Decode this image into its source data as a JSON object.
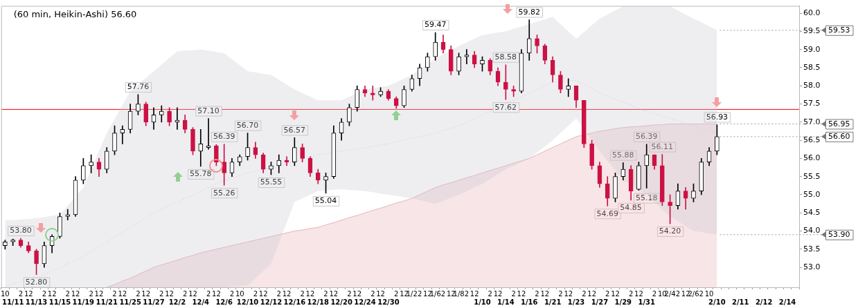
{
  "chart_data": {
    "type": "candlestick",
    "title": "(60 min, Heikin-Ashi) 56.60",
    "categories": [
      "10",
      "11/11",
      "2",
      "12",
      "11/13",
      "2",
      "12",
      "11/15",
      "2",
      "12",
      "11/19",
      "2",
      "12",
      "11/21",
      "2",
      "12",
      "11/25",
      "2",
      "12",
      "11/27",
      "2",
      "12",
      "12/2",
      "2",
      "12",
      "12/4",
      "2",
      "12",
      "12/6",
      "2",
      "10",
      "12/10",
      "2",
      "12",
      "12/12",
      "2",
      "12",
      "12/16",
      "2",
      "12",
      "12/18",
      "2",
      "12",
      "12/20",
      "2",
      "12",
      "12/24",
      "2",
      "12",
      "12/30",
      "2",
      "12",
      "1/2",
      "2",
      "12",
      "1/6",
      "2",
      "12",
      "1/8",
      "2",
      "12",
      "1/10",
      "2",
      "12",
      "1/14",
      "2",
      "12",
      "1/16",
      "2",
      "12",
      "1/21",
      "2",
      "12",
      "1/23",
      "2",
      "12",
      "1/27",
      "2",
      "12",
      "1/29",
      "2",
      "12",
      "1/31",
      "2",
      "10",
      "2/4",
      "2",
      "12",
      "2/6",
      "2",
      "10",
      "2/10",
      null,
      null,
      "2/11",
      null,
      null,
      "2/12",
      null,
      null,
      "2/14",
      null
    ],
    "ohlc": [
      [
        53.6,
        53.75,
        53.5,
        53.7
      ],
      [
        53.7,
        53.78,
        53.6,
        53.75
      ],
      [
        53.75,
        53.8,
        53.55,
        53.6
      ],
      [
        53.6,
        53.7,
        53.4,
        53.45
      ],
      [
        53.45,
        53.5,
        52.8,
        53.1
      ],
      [
        53.1,
        53.7,
        53.0,
        53.6
      ],
      [
        53.6,
        53.9,
        53.4,
        53.85
      ],
      [
        53.85,
        54.5,
        53.8,
        54.4
      ],
      [
        54.4,
        54.6,
        54.3,
        54.45
      ],
      [
        54.45,
        55.5,
        54.4,
        55.4
      ],
      [
        55.4,
        56.0,
        55.3,
        55.8
      ],
      [
        55.8,
        56.1,
        55.6,
        55.9
      ],
      [
        55.9,
        56.0,
        55.5,
        55.7
      ],
      [
        55.7,
        56.3,
        55.6,
        56.2
      ],
      [
        56.2,
        56.9,
        56.1,
        56.7
      ],
      [
        56.7,
        56.9,
        56.4,
        56.8
      ],
      [
        56.8,
        57.5,
        56.7,
        57.3
      ],
      [
        57.3,
        57.76,
        57.2,
        57.5
      ],
      [
        57.5,
        57.55,
        56.9,
        57.0
      ],
      [
        57.0,
        57.4,
        56.8,
        57.2
      ],
      [
        57.2,
        57.45,
        57.0,
        57.3
      ],
      [
        57.3,
        57.4,
        56.9,
        57.0
      ],
      [
        57.0,
        57.4,
        56.8,
        57.05
      ],
      [
        57.05,
        57.2,
        56.7,
        56.8
      ],
      [
        56.8,
        56.85,
        56.1,
        56.2
      ],
      [
        56.2,
        56.8,
        55.78,
        56.4
      ],
      [
        56.3,
        57.1,
        56.25,
        56.35
      ],
      [
        56.35,
        56.38,
        55.8,
        55.9
      ],
      [
        55.9,
        56.39,
        55.26,
        55.6
      ],
      [
        55.6,
        56.0,
        55.5,
        55.9
      ],
      [
        55.9,
        56.1,
        55.8,
        56.05
      ],
      [
        56.05,
        56.7,
        55.95,
        56.3
      ],
      [
        56.3,
        56.45,
        56.0,
        56.1
      ],
      [
        56.1,
        56.15,
        55.6,
        55.7
      ],
      [
        55.7,
        55.9,
        55.55,
        55.8
      ],
      [
        55.8,
        56.1,
        55.6,
        55.95
      ],
      [
        55.95,
        56.05,
        55.8,
        55.9
      ],
      [
        55.9,
        56.57,
        55.8,
        56.3
      ],
      [
        56.3,
        56.4,
        55.9,
        56.0
      ],
      [
        56.0,
        56.05,
        55.5,
        55.6
      ],
      [
        55.6,
        55.7,
        55.3,
        55.4
      ],
      [
        55.4,
        55.6,
        55.04,
        55.5
      ],
      [
        55.5,
        56.9,
        55.45,
        56.7
      ],
      [
        56.7,
        57.1,
        56.5,
        57.0
      ],
      [
        57.0,
        57.5,
        56.9,
        57.4
      ],
      [
        57.4,
        58.0,
        57.3,
        57.9
      ],
      [
        57.9,
        58.0,
        57.7,
        57.8
      ],
      [
        57.8,
        58.0,
        57.6,
        57.75
      ],
      [
        57.75,
        57.95,
        57.7,
        57.85
      ],
      [
        57.85,
        57.9,
        57.6,
        57.65
      ],
      [
        57.65,
        57.7,
        57.38,
        57.45
      ],
      [
        57.45,
        58.0,
        57.4,
        57.9
      ],
      [
        57.9,
        58.3,
        57.85,
        58.2
      ],
      [
        58.2,
        58.6,
        58.0,
        58.5
      ],
      [
        58.5,
        58.9,
        58.4,
        58.8
      ],
      [
        58.8,
        59.47,
        58.7,
        59.2
      ],
      [
        59.2,
        59.4,
        58.9,
        59.0
      ],
      [
        59.0,
        59.1,
        58.3,
        58.4
      ],
      [
        58.4,
        58.9,
        58.3,
        58.8
      ],
      [
        58.8,
        59.0,
        58.6,
        58.85
      ],
      [
        58.85,
        58.95,
        58.5,
        58.6
      ],
      [
        58.6,
        58.8,
        58.4,
        58.7
      ],
      [
        58.7,
        58.75,
        58.3,
        58.4
      ],
      [
        58.4,
        58.5,
        58.0,
        58.1
      ],
      [
        58.1,
        58.58,
        57.62,
        57.9
      ],
      [
        57.9,
        58.0,
        57.7,
        57.85
      ],
      [
        57.85,
        59.0,
        57.8,
        58.9
      ],
      [
        58.9,
        59.82,
        58.7,
        59.3
      ],
      [
        59.3,
        59.4,
        58.9,
        59.1
      ],
      [
        59.1,
        59.15,
        58.6,
        58.7
      ],
      [
        58.7,
        58.8,
        58.1,
        58.3
      ],
      [
        58.3,
        58.4,
        57.8,
        57.9
      ],
      [
        57.9,
        58.2,
        57.7,
        58.0
      ],
      [
        58.0,
        58.0,
        57.4,
        57.6
      ],
      [
        57.6,
        57.6,
        56.3,
        56.4
      ],
      [
        56.4,
        56.5,
        55.7,
        55.8
      ],
      [
        55.8,
        55.9,
        55.2,
        55.3
      ],
      [
        55.3,
        55.5,
        54.69,
        54.9
      ],
      [
        54.9,
        55.6,
        54.8,
        55.5
      ],
      [
        55.5,
        55.88,
        55.4,
        55.7
      ],
      [
        55.7,
        55.8,
        54.85,
        55.1
      ],
      [
        55.15,
        55.9,
        55.12,
        55.8
      ],
      [
        55.8,
        56.39,
        55.18,
        56.1
      ],
      [
        56.1,
        56.1,
        55.7,
        55.8
      ],
      [
        55.8,
        56.11,
        54.7,
        54.8
      ],
      [
        54.8,
        55.0,
        54.2,
        54.7
      ],
      [
        54.7,
        55.3,
        54.6,
        55.1
      ],
      [
        55.1,
        55.2,
        54.6,
        54.9
      ],
      [
        54.9,
        55.3,
        54.8,
        55.1
      ],
      [
        55.1,
        56.0,
        55.0,
        55.9
      ],
      [
        55.9,
        56.3,
        55.8,
        56.2
      ],
      [
        56.2,
        56.93,
        56.1,
        56.6
      ],
      null,
      null,
      null,
      null,
      null,
      null,
      null,
      null,
      null,
      null
    ],
    "colors": [
      "#000000",
      "#000000",
      "#cc1144",
      "#cc1144",
      "#cc1144",
      "#000000",
      "#000000",
      "#000000",
      "#000000",
      "#000000",
      "#000000",
      "#000000",
      "#cc1144",
      "#000000",
      "#000000",
      "#000000",
      "#000000",
      "#000000",
      "#cc1144",
      "#000000",
      "#000000",
      "#cc1144",
      "#000000",
      "#cc1144",
      "#cc1144",
      "#000000",
      "#000000",
      "#cc1144",
      "#cc1144",
      "#000000",
      "#000000",
      "#000000",
      "#cc1144",
      "#cc1144",
      "#000000",
      "#000000",
      "#cc1144",
      "#000000",
      "#cc1144",
      "#cc1144",
      "#cc1144",
      "#000000",
      "#000000",
      "#000000",
      "#000000",
      "#000000",
      "#cc1144",
      "#cc1144",
      "#000000",
      "#cc1144",
      "#cc1144",
      "#000000",
      "#000000",
      "#000000",
      "#000000",
      "#000000",
      "#cc1144",
      "#cc1144",
      "#000000",
      "#000000",
      "#cc1144",
      "#000000",
      "#cc1144",
      "#cc1144",
      "#cc1144",
      "#cc1144",
      "#000000",
      "#000000",
      "#cc1144",
      "#cc1144",
      "#cc1144",
      "#cc1144",
      "#000000",
      "#cc1144",
      "#cc1144",
      "#cc1144",
      "#cc1144",
      "#cc1144",
      "#000000",
      "#000000",
      "#cc1144",
      "#000000",
      "#000000",
      "#cc1144",
      "#cc1144",
      "#cc1144",
      "#000000",
      "#cc1144",
      "#000000",
      "#000000",
      "#000000",
      "#000000",
      null,
      null,
      null,
      null,
      null,
      null,
      null,
      null,
      null,
      null
    ],
    "series": [
      {
        "type": "area",
        "color": "#e8b4ba",
        "values": [
          null,
          null,
          null,
          null,
          null,
          null,
          null,
          null,
          null,
          null,
          null,
          null,
          null,
          52.45,
          52.53,
          52.62,
          52.7,
          52.8,
          52.9,
          53.0,
          53.07,
          53.13,
          53.2,
          53.27,
          53.33,
          53.4,
          53.45,
          53.5,
          53.55,
          53.6,
          53.65,
          53.7,
          53.75,
          53.8,
          53.85,
          53.9,
          53.95,
          54.0,
          54.03,
          54.07,
          54.1,
          54.17,
          54.23,
          54.3,
          54.37,
          54.43,
          54.5,
          54.57,
          54.63,
          54.7,
          54.77,
          54.83,
          54.9,
          55.0,
          55.1,
          55.2,
          55.27,
          55.33,
          55.4,
          55.47,
          55.53,
          55.6,
          55.67,
          55.73,
          55.8,
          55.87,
          55.93,
          56.0,
          56.1,
          56.2,
          56.3,
          56.4,
          56.5,
          56.6,
          56.65,
          56.7,
          56.75,
          56.78,
          56.82,
          56.85,
          56.87,
          56.88,
          56.9,
          56.92,
          56.93,
          56.95,
          56.95,
          56.95,
          56.95,
          56.95,
          56.95,
          56.95,
          null,
          null,
          null,
          null,
          null,
          null,
          null,
          null,
          null,
          null
        ]
      },
      {
        "type": "line",
        "color": "#c8c8d0",
        "line_style": "dotted",
        "values": [
          52.45,
          52.55,
          52.6,
          52.65,
          52.7,
          52.8,
          52.9,
          53.0,
          53.1,
          53.2,
          53.3,
          53.43,
          53.57,
          53.7,
          53.83,
          53.97,
          54.1,
          54.23,
          54.37,
          54.5,
          54.6,
          54.7,
          54.8,
          54.9,
          55.0,
          55.1,
          55.2,
          55.3,
          55.4,
          55.47,
          55.53,
          55.6,
          55.65,
          55.7,
          55.75,
          55.8,
          55.85,
          55.9,
          55.97,
          56.03,
          56.1,
          56.13,
          56.17,
          56.2,
          56.23,
          56.27,
          56.3,
          56.33,
          56.37,
          56.4,
          56.45,
          56.5,
          56.55,
          56.6,
          56.65,
          56.7,
          56.77,
          56.83,
          56.9,
          57.0,
          57.1,
          57.2,
          57.3,
          57.4,
          57.5,
          57.6,
          57.7,
          57.8,
          57.9,
          58.0,
          58.1,
          58.12,
          58.13,
          58.15,
          58.03,
          57.92,
          57.8,
          57.72,
          57.63,
          57.55,
          57.47,
          57.38,
          57.3,
          57.23,
          57.17,
          57.1,
          57.03,
          56.97,
          56.9,
          56.83,
          56.77,
          56.7,
          null,
          null,
          null,
          null,
          null,
          null,
          null,
          null,
          null,
          null
        ],
        "lower": [
          52.45,
          52.45,
          52.45,
          52.45,
          52.45,
          52.45,
          52.45,
          52.45,
          52.45,
          52.45,
          52.45,
          52.45,
          52.45,
          52.45,
          52.45,
          52.45,
          52.45,
          52.45,
          52.45,
          52.45,
          52.45,
          52.45,
          52.45,
          52.45,
          52.45,
          52.45,
          52.45,
          52.45,
          52.45,
          52.47,
          52.48,
          52.5,
          52.7,
          52.9,
          53.1,
          53.67,
          54.23,
          54.8,
          54.9,
          55.0,
          55.1,
          55.12,
          55.13,
          55.15,
          55.13,
          55.12,
          55.1,
          55.07,
          55.03,
          55.0,
          54.97,
          54.93,
          54.9,
          54.85,
          54.8,
          54.75,
          54.83,
          54.92,
          55.0,
          55.1,
          55.2,
          55.3,
          55.43,
          55.57,
          55.7,
          55.8,
          55.9,
          56.0,
          56.17,
          56.33,
          56.5,
          56.7,
          56.9,
          57.1,
          56.8,
          56.5,
          56.2,
          55.93,
          55.67,
          55.4,
          55.27,
          55.13,
          55.0,
          54.8,
          54.6,
          54.4,
          54.27,
          54.13,
          54.0,
          53.97,
          53.93,
          53.9,
          null,
          null,
          null,
          null,
          null,
          null,
          null,
          null,
          null,
          null
        ],
        "upper": [
          54.3,
          54.3,
          54.32,
          54.33,
          54.35,
          54.38,
          54.42,
          54.45,
          54.7,
          54.95,
          55.2,
          55.7,
          56.2,
          56.7,
          57.08,
          57.47,
          57.85,
          58.03,
          58.22,
          58.4,
          58.58,
          58.77,
          58.95,
          58.97,
          58.98,
          59.0,
          58.97,
          58.93,
          58.9,
          58.73,
          58.57,
          58.4,
          58.37,
          58.33,
          58.3,
          58.17,
          58.03,
          57.9,
          57.8,
          57.7,
          57.6,
          57.6,
          57.6,
          57.6,
          57.7,
          57.8,
          57.9,
          57.93,
          57.97,
          58.0,
          58.1,
          58.2,
          58.3,
          58.45,
          58.6,
          58.75,
          58.87,
          58.98,
          59.1,
          59.2,
          59.3,
          59.4,
          59.43,
          59.47,
          59.5,
          59.57,
          59.63,
          59.7,
          59.77,
          59.83,
          59.9,
          59.7,
          59.5,
          59.3,
          59.48,
          59.67,
          59.85,
          59.96,
          60.08,
          60.19,
          60.19,
          60.19,
          60.19,
          60.19,
          60.19,
          60.19,
          60.08,
          59.96,
          59.85,
          59.75,
          59.64,
          59.53,
          null,
          null,
          null,
          null,
          null,
          null,
          null,
          null,
          null,
          null
        ]
      }
    ],
    "ylim": [
      52.45,
      60.2
    ],
    "yticks": [
      {
        "value": 53,
        "label": "53.0"
      },
      {
        "value": 53.5,
        "label": "53.5"
      },
      {
        "value": 54,
        "label": "54.0"
      },
      {
        "value": 54.5,
        "label": "54.5"
      },
      {
        "value": 55,
        "label": "55.0"
      },
      {
        "value": 55.5,
        "label": "55.5"
      },
      {
        "value": 56,
        "label": "56.0"
      },
      {
        "value": 56.5,
        "label": "56.5"
      },
      {
        "value": 57,
        "label": "57.0"
      },
      {
        "value": 57.5,
        "label": "57.5"
      },
      {
        "value": 58,
        "label": "58.0"
      },
      {
        "value": 58.5,
        "label": "58.5"
      },
      {
        "value": 59,
        "label": "59.0"
      },
      {
        "value": 59.5,
        "label": "59.5"
      },
      {
        "value": 60,
        "label": "60.0"
      }
    ],
    "ref_lines": [
      {
        "axis": "y",
        "value": 57.35,
        "color": "#ff0000"
      }
    ],
    "annotations": [
      {
        "text": "53.80",
        "y": 53.8
      },
      {
        "text": "52.80",
        "y": 52.8
      },
      {
        "text": "57.76",
        "y": 57.76
      },
      {
        "text": "55.78",
        "y": 55.78
      },
      {
        "text": "57.10",
        "y": 57.1
      },
      {
        "text": "56.39",
        "y": 56.39
      },
      {
        "text": "55.26",
        "y": 55.26
      },
      {
        "text": "56.70",
        "y": 56.7
      },
      {
        "text": "55.55",
        "y": 55.55
      },
      {
        "text": "56.57",
        "y": 56.57
      },
      {
        "text": "55.04",
        "y": 55.04
      },
      {
        "text": "59.47",
        "y": 59.47
      },
      {
        "text": "57.62",
        "y": 57.62
      },
      {
        "text": "58.58",
        "y": 58.58
      },
      {
        "text": "59.82",
        "y": 59.82
      },
      {
        "text": "54.69",
        "y": 54.69
      },
      {
        "text": "55.88",
        "y": 55.88
      },
      {
        "text": "54.85",
        "y": 54.85
      },
      {
        "text": "55.18",
        "y": 55.18
      },
      {
        "text": "56.39",
        "y": 56.39
      },
      {
        "text": "56.11",
        "y": 56.11
      },
      {
        "text": "54.20",
        "y": 54.2
      },
      {
        "text": "56.93",
        "y": 56.93
      },
      {
        "text": "59.53",
        "x": "2/10",
        "y": 59.53
      },
      {
        "text": "56.95",
        "x": "2/10",
        "y": 56.95
      },
      {
        "text": "56.60",
        "x": "2/10",
        "y": 56.6
      },
      {
        "text": "53.90",
        "x": "2/10",
        "y": 53.9
      }
    ]
  }
}
